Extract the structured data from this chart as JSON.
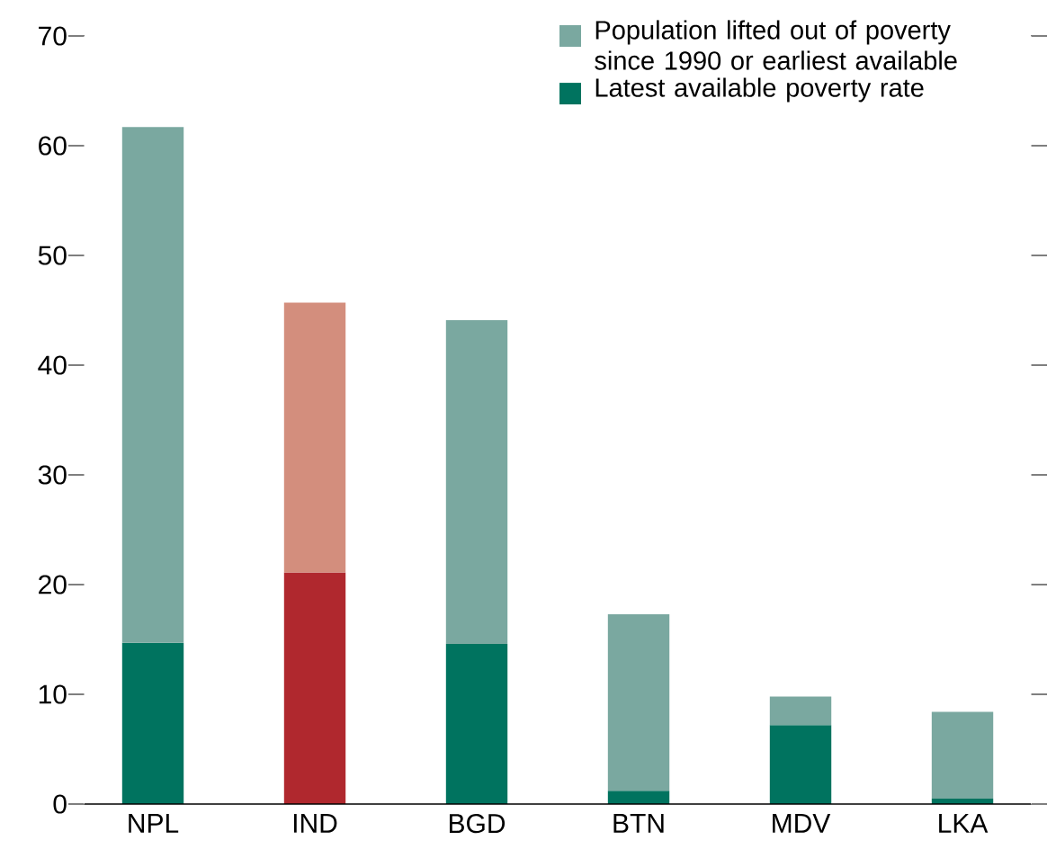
{
  "chart_data": {
    "type": "bar",
    "stacked": true,
    "categories": [
      "NPL",
      "IND",
      "BGD",
      "BTN",
      "MDV",
      "LKA"
    ],
    "series": [
      {
        "name": "Latest available poverty rate",
        "color": "#00735f",
        "colors": [
          "#00735f",
          "#b0282e",
          "#00735f",
          "#00735f",
          "#00735f",
          "#00735f"
        ],
        "values": [
          14.7,
          21.1,
          14.6,
          1.2,
          7.2,
          0.5
        ]
      },
      {
        "name": "Population lifted out of poverty since 1990 or earliest available",
        "color": "#7aa8a0",
        "colors": [
          "#7aa8a0",
          "#d38e7d",
          "#7aa8a0",
          "#7aa8a0",
          "#7aa8a0",
          "#7aa8a0"
        ],
        "values": [
          47.0,
          24.6,
          29.5,
          16.1,
          2.6,
          7.9
        ]
      }
    ],
    "ylim": [
      0,
      70
    ],
    "yticks": [
      0,
      10,
      20,
      30,
      40,
      50,
      60,
      70
    ],
    "legend": "top right"
  }
}
